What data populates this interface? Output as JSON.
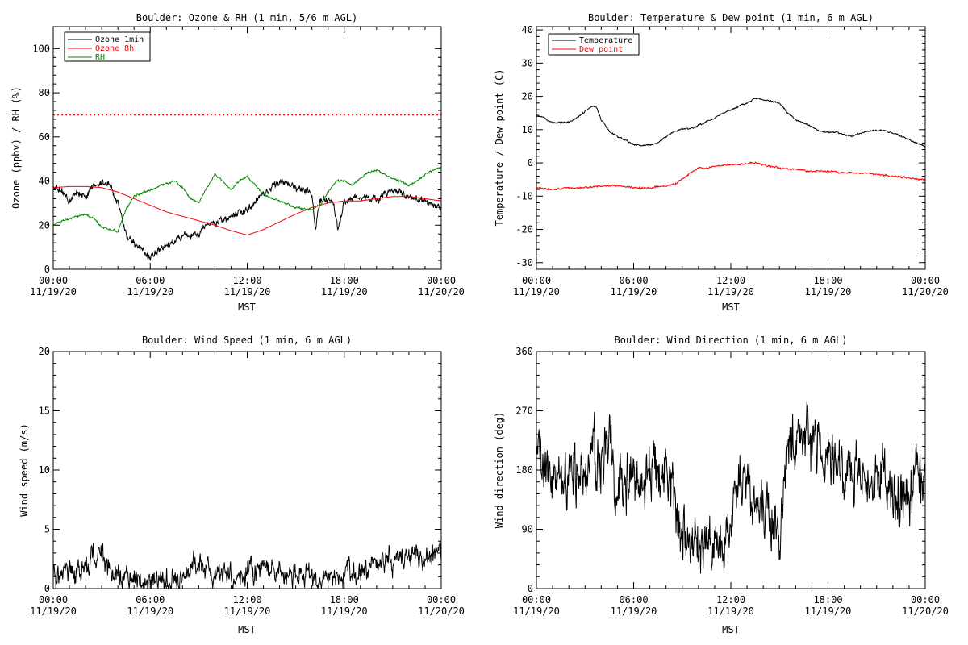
{
  "chart_data": [
    {
      "type": "line",
      "title": "Boulder: Ozone & RH (1 min, 5/6 m AGL)",
      "xlabel": "MST",
      "ylabel": "Ozone (ppbv) / RH (%)",
      "xlim": [
        0,
        24
      ],
      "ylim": [
        0,
        110
      ],
      "yticks": [
        0,
        20,
        40,
        60,
        80,
        100
      ],
      "ytick_labels": [
        "0",
        "20",
        "40",
        "60",
        "80",
        "100"
      ],
      "legend_position": "top-left",
      "grid": false,
      "series": [
        {
          "name": "Ozone 1min",
          "color": "#000000",
          "noise": 2.2,
          "x": [
            0,
            0.5,
            1,
            1.5,
            2,
            2.5,
            3,
            3.5,
            4,
            4.25,
            4.5,
            5,
            5.5,
            6,
            6.5,
            7,
            7.5,
            8,
            8.5,
            9,
            9.5,
            10,
            10.5,
            11,
            11.5,
            12,
            12.5,
            13,
            13.5,
            14,
            14.5,
            15,
            15.5,
            16,
            16.2,
            16.5,
            17,
            17.3,
            17.6,
            18,
            18.5,
            19,
            19.5,
            20,
            20.5,
            21,
            21.5,
            22,
            22.5,
            23,
            23.5,
            24
          ],
          "y": [
            37,
            36,
            31,
            35,
            33,
            38,
            39,
            39,
            30,
            24,
            16,
            12,
            9,
            5,
            9,
            11,
            13,
            15,
            15,
            17,
            20,
            21,
            22,
            24,
            26,
            27,
            30,
            34,
            37,
            39,
            39,
            37,
            36,
            33,
            18,
            32,
            31,
            30,
            17,
            30,
            32,
            33,
            32,
            32,
            34,
            35,
            35,
            33,
            32,
            31,
            29,
            28
          ]
        },
        {
          "name": "Ozone 8h",
          "color": "#ff0000",
          "noise": 0,
          "x": [
            0,
            1,
            2,
            3,
            4,
            5,
            6,
            7,
            8,
            9,
            10,
            11,
            12,
            13,
            14,
            15,
            16,
            17,
            18,
            19,
            20,
            21,
            22,
            23,
            24
          ],
          "y": [
            37,
            37.5,
            37.5,
            37,
            35,
            32,
            29,
            26,
            24,
            22,
            20,
            17.5,
            15.5,
            18,
            21.5,
            25,
            28,
            30,
            31,
            31,
            32,
            33,
            33,
            32,
            31
          ]
        },
        {
          "name": "RH",
          "color": "#008800",
          "noise": 0.6,
          "x": [
            0,
            0.5,
            1,
            1.5,
            2,
            2.5,
            3,
            3.5,
            4,
            4.25,
            4.5,
            5,
            6,
            7,
            7.5,
            8,
            8.5,
            9,
            9.5,
            10,
            10.5,
            11,
            11.5,
            12,
            12.5,
            13,
            13.5,
            14,
            15,
            16,
            16.5,
            17,
            17.5,
            18,
            18.5,
            19,
            19.5,
            20,
            20.5,
            21,
            21.5,
            22,
            22.5,
            23,
            23.5,
            24
          ],
          "y": [
            20,
            22,
            23,
            24,
            25,
            23,
            19,
            18,
            17,
            22,
            27,
            33,
            36,
            39,
            40,
            37,
            32,
            30,
            37,
            43,
            40,
            36,
            40,
            42,
            38,
            34,
            32,
            31,
            28,
            27,
            29,
            35,
            40,
            40,
            38,
            41,
            44,
            45,
            43,
            41,
            40,
            38,
            40,
            43,
            45,
            46
          ]
        }
      ],
      "reference_lines": [
        {
          "y": 70,
          "color": "#ff0000",
          "style": "dotted"
        }
      ]
    },
    {
      "type": "line",
      "title": "Boulder: Temperature & Dew point (1 min, 6 m AGL)",
      "xlabel": "MST",
      "ylabel": "Temperature / Dew point (C)",
      "xlim": [
        0,
        24
      ],
      "ylim": [
        -32,
        41
      ],
      "yticks": [
        -30,
        -20,
        -10,
        0,
        10,
        20,
        30,
        40
      ],
      "ytick_labels": [
        "-30",
        "-20",
        "-10",
        "0",
        "10",
        "20",
        "30",
        "40"
      ],
      "legend_position": "top-left",
      "grid": false,
      "series": [
        {
          "name": "Temperature",
          "color": "#000000",
          "noise": 0.3,
          "x": [
            0,
            0.5,
            1,
            1.5,
            2,
            2.5,
            3,
            3.5,
            3.75,
            4,
            4.5,
            5,
            5.5,
            6,
            6.5,
            7,
            7.5,
            8,
            8.5,
            9,
            9.5,
            10,
            10.5,
            11,
            11.5,
            12,
            12.5,
            13,
            13.5,
            14,
            14.5,
            15,
            15.5,
            16,
            16.5,
            17,
            17.5,
            18,
            18.5,
            19,
            19.5,
            20,
            20.5,
            21,
            21.5,
            22,
            22.5,
            23,
            23.5,
            24
          ],
          "y": [
            14.5,
            13.5,
            12,
            12.2,
            12.3,
            13.5,
            15.5,
            17,
            16.5,
            13,
            9.5,
            8,
            7,
            5.5,
            5.2,
            5.3,
            6,
            8,
            9.5,
            10.2,
            10.2,
            11.2,
            12.5,
            13.5,
            15,
            16,
            17,
            18,
            19.5,
            19,
            18.5,
            18,
            15,
            13,
            12,
            11,
            9.5,
            9.2,
            9.2,
            8.5,
            8,
            9,
            9.5,
            9.8,
            9.7,
            9,
            8,
            7,
            6,
            5
          ]
        },
        {
          "name": "Dew point",
          "color": "#ff0000",
          "noise": 0.35,
          "x": [
            0,
            1,
            2,
            3,
            4,
            5,
            6,
            7,
            8,
            8.5,
            9,
            9.5,
            10,
            10.5,
            11,
            12,
            13,
            13.5,
            14,
            14.5,
            15,
            16,
            17,
            18,
            19,
            20,
            21,
            22,
            23,
            24
          ],
          "y": [
            -7.5,
            -8,
            -7.5,
            -7.5,
            -7,
            -7,
            -7.5,
            -7.5,
            -7,
            -6.5,
            -5,
            -3,
            -1.5,
            -1.5,
            -1,
            -0.5,
            -0.3,
            0,
            -0.5,
            -1,
            -1.5,
            -2,
            -2.5,
            -2.5,
            -3,
            -3,
            -3.5,
            -4,
            -4.5,
            -5
          ]
        }
      ]
    },
    {
      "type": "line",
      "title": "Boulder: Wind Speed (1 min, 6 m AGL)",
      "xlabel": "MST",
      "ylabel": "Wind speed (m/s)",
      "xlim": [
        0,
        24
      ],
      "ylim": [
        0,
        20
      ],
      "yticks": [
        0,
        5,
        10,
        15,
        20
      ],
      "ytick_labels": [
        "0",
        "5",
        "10",
        "15",
        "20"
      ],
      "grid": false,
      "series": [
        {
          "name": "",
          "color": "#000000",
          "noise": 1.3,
          "x": [
            0,
            1,
            2,
            2.5,
            3,
            3.5,
            4,
            4.5,
            5,
            6,
            7,
            8,
            8.5,
            9,
            9.5,
            10,
            11,
            12,
            12.5,
            13,
            14,
            15,
            16,
            16.5,
            17,
            18,
            19,
            20,
            20.5,
            21,
            22,
            23,
            24
          ],
          "y": [
            1.5,
            1.2,
            1.5,
            2.8,
            3,
            1.5,
            1,
            0.8,
            0.8,
            0.8,
            0.8,
            1,
            1.5,
            2.2,
            1.5,
            1,
            1.2,
            1.5,
            1.3,
            1.6,
            1.3,
            1.2,
            1,
            0.8,
            1,
            1.2,
            1.3,
            2,
            2.8,
            2.3,
            2.5,
            2.8,
            3
          ]
        }
      ]
    },
    {
      "type": "line",
      "title": "Boulder: Wind Direction (1 min, 6 m AGL)",
      "xlabel": "MST",
      "ylabel": "Wind direction (deg)",
      "xlim": [
        0,
        24
      ],
      "ylim": [
        0,
        360
      ],
      "yticks": [
        0,
        90,
        180,
        270,
        360
      ],
      "ytick_labels": [
        "0",
        "90",
        "180",
        "270",
        "360"
      ],
      "grid": false,
      "series": [
        {
          "name": "",
          "color": "#000000",
          "noise": 60,
          "x": [
            0,
            1,
            2,
            3,
            4,
            4.5,
            5,
            6,
            7,
            8,
            8.5,
            9,
            10,
            11,
            12,
            12.5,
            13,
            14,
            15,
            15.5,
            16,
            16.5,
            17,
            17.5,
            18,
            18.5,
            19,
            19.5,
            20,
            20.5,
            21,
            21.5,
            22,
            22.5,
            23,
            23.5,
            24
          ],
          "y": [
            180,
            180,
            170,
            180,
            200,
            230,
            160,
            170,
            180,
            170,
            120,
            80,
            60,
            60,
            100,
            170,
            150,
            120,
            80,
            200,
            220,
            240,
            220,
            215,
            210,
            200,
            180,
            175,
            170,
            170,
            175,
            170,
            160,
            130,
            150,
            165,
            170
          ]
        }
      ]
    }
  ],
  "xaxis": {
    "tick_hours": [
      0,
      6,
      12,
      18,
      24
    ],
    "tick_time_labels": [
      "00:00",
      "06:00",
      "12:00",
      "18:00",
      "00:00"
    ],
    "tick_date_labels": [
      "11/19/20",
      "11/19/20",
      "11/19/20",
      "11/19/20",
      "11/20/20"
    ]
  }
}
